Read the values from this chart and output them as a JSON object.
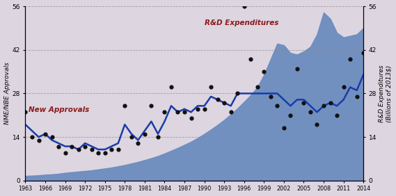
{
  "ylabel_left": "NME/NBE Approvals",
  "ylabel_right": "R&D Expenditures\n(Billions of 2013$)",
  "ylim": [
    0,
    56
  ],
  "yticks": [
    0,
    14,
    28,
    42,
    56
  ],
  "bg_color": "#ddd5e0",
  "plot_bg_color": "#ddd5e0",
  "annotation_approvals": "New Approvals",
  "annotation_rd": "R&D Expenditures",
  "annotation_approvals_color": "#8b1a1a",
  "annotation_rd_color": "#8b1a1a",
  "years": [
    1963,
    1964,
    1965,
    1966,
    1967,
    1968,
    1969,
    1970,
    1971,
    1972,
    1973,
    1974,
    1975,
    1976,
    1977,
    1978,
    1979,
    1980,
    1981,
    1982,
    1983,
    1984,
    1985,
    1986,
    1987,
    1988,
    1989,
    1990,
    1991,
    1992,
    1993,
    1994,
    1995,
    1996,
    1997,
    1998,
    1999,
    2000,
    2001,
    2002,
    2003,
    2004,
    2005,
    2006,
    2007,
    2008,
    2009,
    2010,
    2011,
    2012,
    2013,
    2014
  ],
  "approvals_scatter": [
    22,
    14,
    13,
    15,
    14,
    11,
    9,
    11,
    10,
    11,
    10,
    9,
    9,
    10,
    10,
    24,
    14,
    12,
    15,
    24,
    14,
    22,
    30,
    22,
    22,
    20,
    23,
    23,
    30,
    26,
    25,
    22,
    28,
    56,
    39,
    30,
    35,
    27,
    24,
    17,
    21,
    36,
    25,
    22,
    18,
    24,
    25,
    21,
    30,
    39,
    27,
    41
  ],
  "approvals_line_y": [
    18,
    16,
    14,
    15,
    13,
    12,
    11,
    11,
    10,
    12,
    11,
    10,
    10,
    11,
    12,
    18,
    15,
    13,
    16,
    19,
    15,
    19,
    24,
    22,
    23,
    22,
    24,
    24,
    27,
    26,
    25,
    24,
    28,
    28,
    28,
    28,
    28,
    28,
    28,
    26,
    24,
    26,
    26,
    24,
    22,
    24,
    25,
    24,
    26,
    30,
    29,
    34
  ],
  "rd_expenditures_values": [
    1.5,
    1.6,
    1.7,
    1.9,
    2.0,
    2.2,
    2.5,
    2.7,
    2.9,
    3.1,
    3.3,
    3.6,
    3.9,
    4.2,
    4.6,
    5.0,
    5.5,
    6.0,
    6.6,
    7.2,
    7.9,
    8.7,
    9.6,
    10.5,
    11.5,
    12.5,
    13.7,
    15.0,
    16.4,
    17.9,
    19.5,
    21.3,
    23.2,
    25.3,
    27.5,
    30.0,
    34.0,
    39.0,
    44.0,
    43.5,
    41.0,
    40.5,
    41.5,
    43.0,
    47.0,
    54.0,
    52.0,
    47.5,
    46.0,
    46.5,
    47.0,
    49.0
  ],
  "line_color": "#1a3caa",
  "fill_rd_color": "#6b8dbf",
  "fill_rd_alpha": 0.95,
  "fill_approvals_color": "#cfc4d8",
  "scatter_color": "#111111",
  "scatter_size": 12,
  "xticks": [
    1963,
    1966,
    1969,
    1972,
    1975,
    1978,
    1981,
    1984,
    1987,
    1990,
    1993,
    1996,
    1999,
    2002,
    2005,
    2008,
    2011,
    2014
  ],
  "xlim": [
    1963,
    2014
  ],
  "grid_color": "#888888",
  "grid_alpha": 0.7,
  "grid_style": "--",
  "grid_lw": 0.6
}
